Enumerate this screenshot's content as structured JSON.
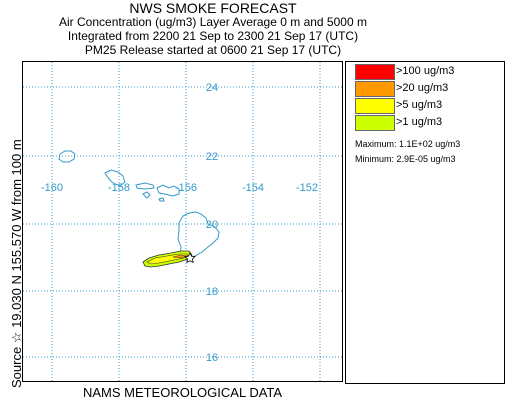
{
  "header": {
    "title": "NWS SMOKE FORECAST",
    "line2": "Air Concentration (ug/m3) Layer Average    0 m and  5000 m",
    "line3": "Integrated from 2200 21 Sep to 2300 21 Sep 17 (UTC)",
    "line4": "PM25 Release started at 0600 21 Sep 17 (UTC)"
  },
  "side_label": "Source ☆  19.030  N 155.570  W       from  100 m",
  "bottom_label": "NAMS METEOROLOGICAL DATA",
  "map": {
    "longitude_labels": [
      "-160",
      "-158",
      "-156",
      "-154",
      "-152"
    ],
    "latitude_labels": [
      "24",
      "22",
      "20",
      "18",
      "16"
    ],
    "grid_color": "#3399cc",
    "coast_color": "#3399cc",
    "source_symbol": "star-icon"
  },
  "legend": {
    "items": [
      {
        "label": ">100 ug/m3",
        "color": "#ff0000"
      },
      {
        "label": ">20 ug/m3",
        "color": "#ff9900"
      },
      {
        "label": ">5 ug/m3",
        "color": "#ffff00"
      },
      {
        "label": ">1 ug/m3",
        "color": "#ccff00"
      }
    ],
    "maximum": "Maximum: 1.1E+02 ug/m3",
    "minimum": "Minimum: 2.9E-05 ug/m3"
  }
}
